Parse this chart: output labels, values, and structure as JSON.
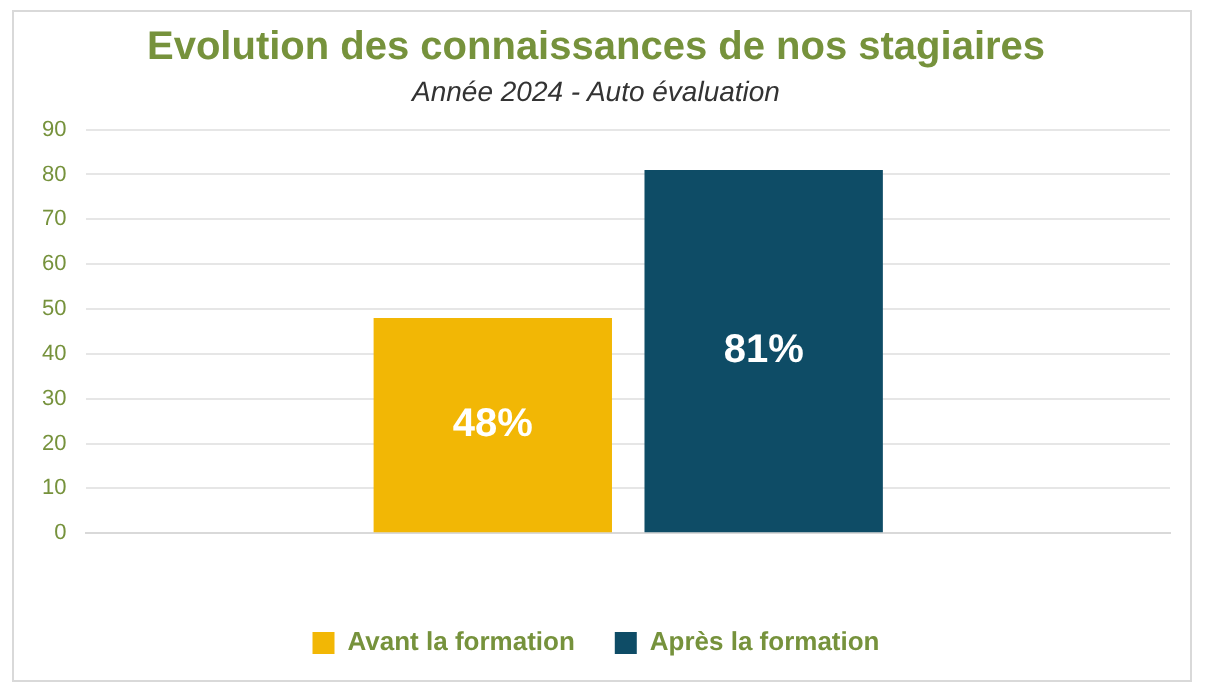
{
  "chart_data": {
    "type": "bar",
    "title": "Evolution des connaissances de nos stagiaires",
    "subtitle": "Année 2024 - Auto évaluation",
    "categories": [
      null
    ],
    "series": [
      {
        "name": "Avant la formation",
        "color": "#f2b705",
        "values": [
          48
        ],
        "value_labels": [
          "48%"
        ]
      },
      {
        "name": "Après la formation",
        "color": "#0e4c66",
        "values": [
          81
        ],
        "value_labels": [
          "81%"
        ]
      }
    ],
    "ylim": [
      0,
      90
    ],
    "yticks": [
      0,
      10,
      20,
      30,
      40,
      50,
      60,
      70,
      80,
      90
    ],
    "grid": "y",
    "legend": "bottom"
  }
}
